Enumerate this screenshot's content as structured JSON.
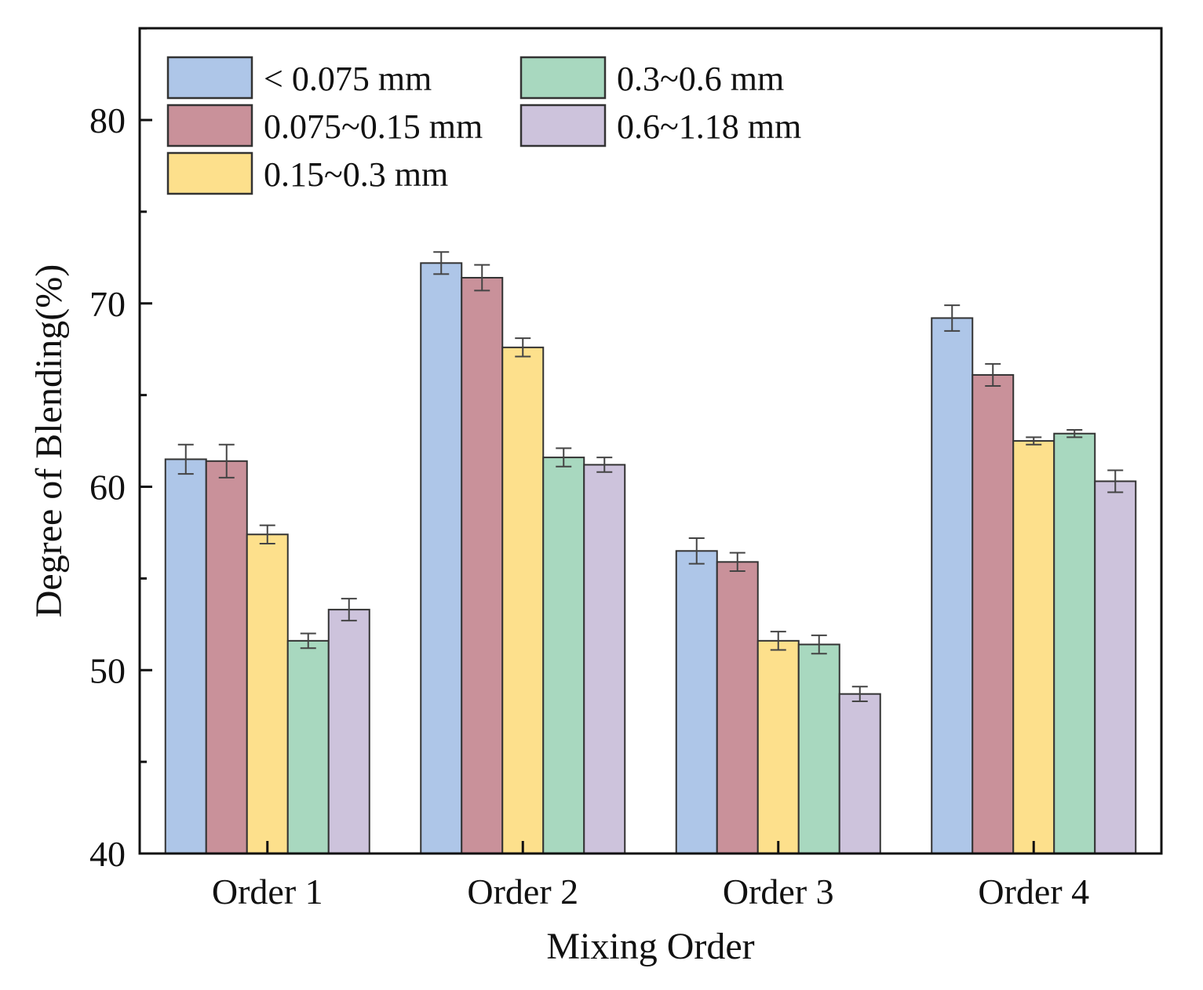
{
  "chart_data": {
    "type": "bar",
    "title": "",
    "xlabel": "Mixing Order",
    "ylabel": "Degree of Blending(%)",
    "ylim": [
      40,
      85
    ],
    "yticks": [
      40,
      50,
      60,
      70,
      80
    ],
    "grid": false,
    "legend_position": "top-left",
    "categories": [
      "Order 1",
      "Order 2",
      "Order 3",
      "Order 4"
    ],
    "series": [
      {
        "name": "< 0.075 mm",
        "color": "#aec6e8",
        "values": [
          61.5,
          72.2,
          56.5,
          69.2
        ],
        "errors": [
          0.8,
          0.6,
          0.7,
          0.7
        ]
      },
      {
        "name": "0.075~0.15 mm",
        "color": "#c9919a",
        "values": [
          61.4,
          71.4,
          55.9,
          66.1
        ],
        "errors": [
          0.9,
          0.7,
          0.5,
          0.6
        ]
      },
      {
        "name": "0.15~0.3 mm",
        "color": "#fde08c",
        "values": [
          57.4,
          67.6,
          51.6,
          62.5
        ],
        "errors": [
          0.5,
          0.5,
          0.5,
          0.2
        ]
      },
      {
        "name": "0.3~0.6 mm",
        "color": "#a8d8bf",
        "values": [
          51.6,
          61.6,
          51.4,
          62.9
        ],
        "errors": [
          0.4,
          0.5,
          0.5,
          0.2
        ]
      },
      {
        "name": "0.6~1.18 mm",
        "color": "#cdc3dc",
        "values": [
          53.3,
          61.2,
          48.7,
          60.3
        ],
        "errors": [
          0.6,
          0.4,
          0.4,
          0.6
        ]
      }
    ]
  }
}
